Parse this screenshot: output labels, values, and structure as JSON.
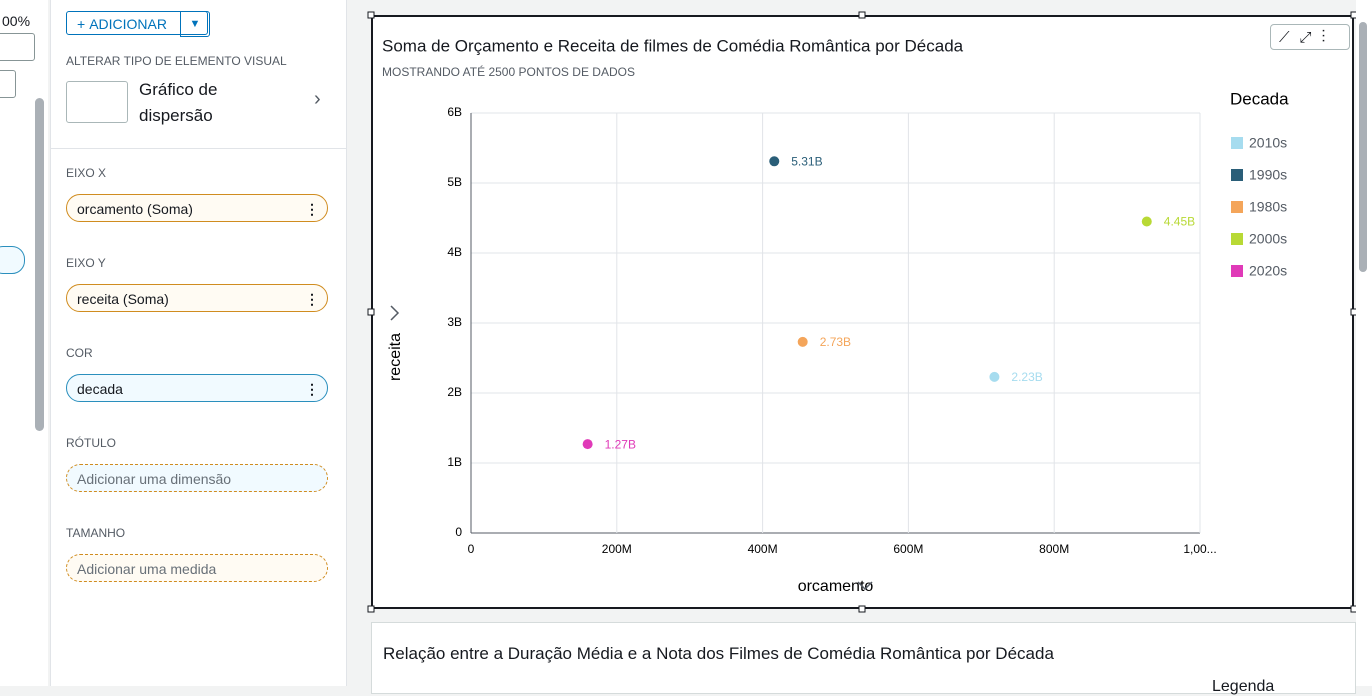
{
  "left_strip": {
    "zoom": "00%"
  },
  "sidebar": {
    "add_button": "ADICIONAR",
    "visual_type_label": "ALTERAR TIPO DE ELEMENTO VISUAL",
    "visual_type": "Gráfico de dispersão",
    "wells": [
      {
        "label": "EIXO X",
        "field": "orcamento (Soma)"
      },
      {
        "label": "EIXO Y",
        "field": "receita (Soma)"
      },
      {
        "label": "COR",
        "field": "decada"
      },
      {
        "label": "RÓTULO",
        "placeholder": "Adicionar uma dimensão"
      },
      {
        "label": "TAMANHO",
        "placeholder": "Adicionar uma medida"
      }
    ]
  },
  "chart_data": {
    "type": "scatter",
    "title": "Soma de Orçamento e Receita de filmes de Comédia Romântica por Década",
    "subtitle": "MOSTRANDO ATÉ 2500 PONTOS DE DADOS",
    "x_label": "orcamento",
    "y_label": "receita",
    "legend_title": "Decada",
    "legend": "right",
    "grid": true,
    "xlim": [
      0,
      1000000000
    ],
    "xticks": [
      0,
      {
        "value": 200000000,
        "label": "200M"
      },
      {
        "value": 400000000,
        "label": "400M"
      },
      {
        "value": 600000000,
        "label": "600M"
      },
      {
        "value": 800000000,
        "label": "800M"
      },
      {
        "value": 1000000000,
        "label": "1,00..."
      }
    ],
    "ylim": [
      0,
      6000000000
    ],
    "yticks": [
      0,
      {
        "value": 1000000000,
        "label": "1B"
      },
      {
        "value": 2000000000,
        "label": "2B"
      },
      {
        "value": 3000000000,
        "label": "3B"
      },
      {
        "value": 4000000000,
        "label": "4B"
      },
      {
        "value": 5000000000,
        "label": "5B"
      },
      {
        "value": 6000000000,
        "label": "6B"
      }
    ],
    "series": [
      {
        "name": "2010s",
        "color": "#a6dcef",
        "x": [
          718000000
        ],
        "values": [
          2230000000
        ],
        "value_labels": [
          "2.23B"
        ]
      },
      {
        "name": "1990s",
        "color": "#2a5e78",
        "x": [
          416000000
        ],
        "values": [
          5310000000
        ],
        "value_labels": [
          "5.31B"
        ]
      },
      {
        "name": "1980s",
        "color": "#f4a55a",
        "x": [
          455000000
        ],
        "values": [
          2730000000
        ],
        "value_labels": [
          "2.73B"
        ]
      },
      {
        "name": "2000s",
        "color": "#b8d935",
        "x": [
          927000000
        ],
        "values": [
          4450000000
        ],
        "value_labels": [
          "4.45B"
        ]
      },
      {
        "name": "2020s",
        "color": "#e03ab8",
        "x": [
          160000000
        ],
        "values": [
          1270000000
        ],
        "value_labels": [
          "1.27B"
        ]
      }
    ]
  },
  "second_chart": {
    "title": "Relação entre a Duração Média e a Nota dos Filmes de Comédia Romântica por Década",
    "legend_title": "Legenda"
  }
}
